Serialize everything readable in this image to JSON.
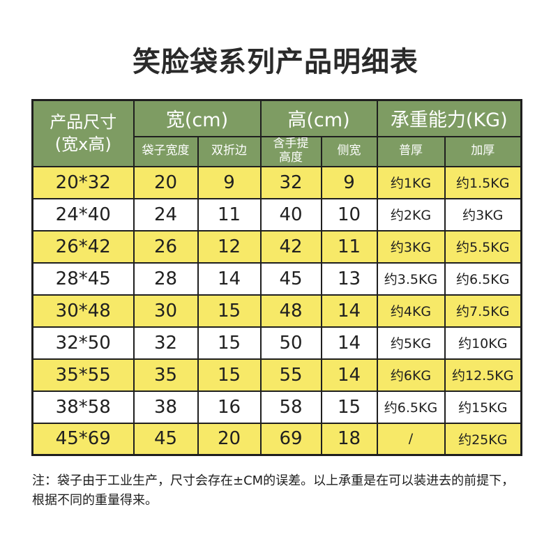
{
  "page": {
    "title": "笑脸袋系列产品明细表",
    "note": "注：袋子由于工业生产，尺寸会存在±CM的误差。以上承重是在可以装进去的前提下，根据不同的重量得来。"
  },
  "colors": {
    "header_green": "#7e9c63",
    "row_yellow": "#f7e968",
    "border": "#1f1f1f"
  },
  "table": {
    "corner_header": "产品尺寸\n(宽x高)",
    "groups": [
      {
        "label": "宽(cm)",
        "children": [
          "袋子宽度",
          "双折边"
        ]
      },
      {
        "label": "高(cm)",
        "children": [
          "含手提\n高度",
          "侧宽"
        ]
      },
      {
        "label": "承重能力(KG)",
        "children": [
          "普厚",
          "加厚"
        ]
      }
    ],
    "rows": [
      [
        "20*32",
        "20",
        "9",
        "32",
        "9",
        "约1KG",
        "约1.5KG"
      ],
      [
        "24*40",
        "24",
        "11",
        "40",
        "10",
        "约2KG",
        "约3KG"
      ],
      [
        "26*42",
        "26",
        "12",
        "42",
        "11",
        "约3KG",
        "约5.5KG"
      ],
      [
        "28*45",
        "28",
        "14",
        "45",
        "13",
        "约3.5KG",
        "约6.5KG"
      ],
      [
        "30*48",
        "30",
        "15",
        "48",
        "14",
        "约4KG",
        "约7.5KG"
      ],
      [
        "32*50",
        "32",
        "15",
        "50",
        "14",
        "约5KG",
        "约10KG"
      ],
      [
        "35*55",
        "35",
        "15",
        "55",
        "14",
        "约6KG",
        "约12.5KG"
      ],
      [
        "38*58",
        "38",
        "16",
        "58",
        "15",
        "约6.5KG",
        "约15KG"
      ],
      [
        "45*69",
        "45",
        "20",
        "69",
        "18",
        "/",
        "约25KG"
      ]
    ]
  }
}
